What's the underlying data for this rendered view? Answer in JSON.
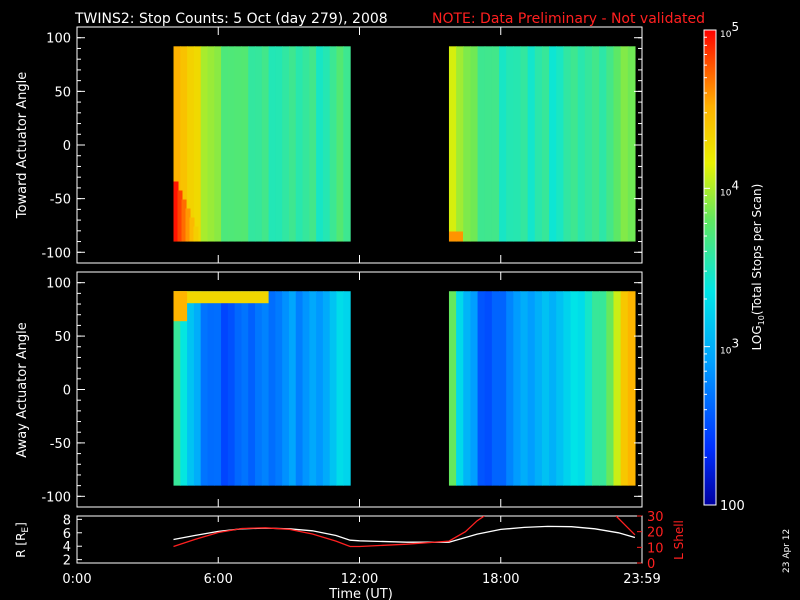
{
  "title": {
    "main": "TWINS2: Stop Counts:  5 Oct (day 279), 2008",
    "note": "NOTE: Data Preliminary - Not validated"
  },
  "date_stamp": "23 Apr 12",
  "colors": {
    "background": "#000000",
    "axes": "#ffffff",
    "note": "#ff2020",
    "r_line": "#ffffff",
    "lshell_line": "#ff2020"
  },
  "chart_data": [
    {
      "type": "heatmap",
      "name": "toward",
      "ylabel": "Toward Actuator Angle",
      "ylim": [
        -110,
        110
      ],
      "yticks": [
        100,
        50,
        0,
        -50,
        -100
      ],
      "xlim": [
        0,
        24
      ],
      "blocks": [
        {
          "t_start": 4.1,
          "t_end": 11.6,
          "angle_min": -90,
          "angle_max": 92,
          "level_profile": [
            4.6,
            4.45,
            4.3,
            4.2,
            4.05,
            3.95,
            3.85,
            3.8,
            3.75,
            3.7,
            3.65,
            3.65,
            3.6,
            3.6,
            3.6,
            3.55,
            3.55,
            3.55,
            3.6,
            3.6,
            3.6,
            3.55,
            3.55,
            3.6,
            3.65,
            3.7
          ],
          "low_angle_edge": "red-orange near -90 at start"
        },
        {
          "t_start": 15.8,
          "t_end": 23.7,
          "angle_min": -90,
          "angle_max": 92,
          "level_profile": [
            4.2,
            4.0,
            3.85,
            3.75,
            3.7,
            3.65,
            3.6,
            3.55,
            3.55,
            3.5,
            3.5,
            3.5,
            3.55,
            3.55,
            3.5,
            3.5,
            3.55,
            3.55,
            3.6,
            3.6,
            3.6,
            3.65,
            3.7,
            3.75,
            3.8,
            3.9
          ]
        }
      ]
    },
    {
      "type": "heatmap",
      "name": "away",
      "ylabel": "Away Actuator Angle",
      "ylim": [
        -110,
        110
      ],
      "yticks": [
        100,
        50,
        0,
        -50,
        -100
      ],
      "xlim": [
        0,
        24
      ],
      "blocks": [
        {
          "t_start": 4.1,
          "t_end": 11.6,
          "angle_min": -90,
          "angle_max": 92,
          "level_profile": [
            3.7,
            3.4,
            3.1,
            2.9,
            2.75,
            2.65,
            2.6,
            2.55,
            2.55,
            2.6,
            2.6,
            2.65,
            2.7,
            2.7,
            2.75,
            2.75,
            2.8,
            2.85,
            2.8,
            2.85,
            2.9,
            2.95,
            3.0,
            3.1,
            3.2,
            3.3
          ],
          "high_angle_band": "orange-yellow near +90"
        },
        {
          "t_start": 15.8,
          "t_end": 23.7,
          "angle_min": -90,
          "angle_max": 92,
          "level_profile": [
            3.9,
            3.3,
            3.0,
            2.8,
            2.6,
            2.5,
            2.55,
            2.7,
            2.8,
            2.85,
            2.9,
            2.95,
            3.0,
            3.05,
            3.1,
            3.15,
            3.2,
            3.25,
            3.35,
            3.45,
            3.55,
            3.7,
            3.85,
            4.05,
            4.3,
            4.55
          ]
        }
      ]
    },
    {
      "type": "line",
      "name": "orbit",
      "xlabel": "Time (UT)",
      "xlim": [
        0,
        24
      ],
      "xticks": [
        {
          "v": 0,
          "label": "0:00"
        },
        {
          "v": 6,
          "label": "6:00"
        },
        {
          "v": 12,
          "label": "12:00"
        },
        {
          "v": 18,
          "label": "18:00"
        },
        {
          "v": 24,
          "label": "23:59"
        }
      ],
      "left_axis": {
        "label": "R [R",
        "label_sub": "E",
        "label_end": "]",
        "ylim": [
          1.5,
          8.5
        ],
        "yticks": [
          2,
          4,
          6,
          8
        ]
      },
      "right_axis": {
        "label": "L Shell",
        "ylim": [
          0,
          30
        ],
        "yticks": [
          0,
          10,
          20,
          30
        ]
      },
      "series": [
        {
          "axis": "left",
          "x": [
            4.1,
            5.0,
            6.0,
            7.0,
            8.0,
            9.0,
            10.0,
            11.0,
            11.6,
            12.0,
            14.0,
            15.8,
            17.0,
            18.0,
            19.0,
            20.0,
            21.0,
            22.0,
            23.0,
            23.7
          ],
          "y": [
            5.0,
            5.6,
            6.2,
            6.6,
            6.7,
            6.6,
            6.3,
            5.6,
            4.9,
            4.8,
            4.6,
            4.6,
            5.8,
            6.5,
            6.8,
            6.95,
            6.9,
            6.6,
            6.0,
            5.3
          ]
        },
        {
          "axis": "right",
          "x": [
            4.1,
            5.0,
            6.0,
            7.0,
            8.0,
            9.0,
            10.0,
            11.0,
            11.6,
            12.0,
            14.0,
            15.8,
            16.5,
            17.0,
            17.3
          ],
          "y": [
            10.5,
            15,
            19.5,
            22,
            22.5,
            21.5,
            18.5,
            14,
            10.5,
            10.5,
            12,
            14,
            20,
            27,
            30
          ]
        },
        {
          "axis": "right",
          "x": [
            22.9,
            23.3,
            23.7
          ],
          "y": [
            30,
            24,
            18
          ]
        }
      ]
    }
  ],
  "colorbar": {
    "label_prefix": "LOG",
    "label_sub": "10",
    "label_suffix": "(Total Stops per Scan)",
    "range": [
      2,
      5
    ],
    "ticks": [
      {
        "v": 5,
        "base": "10",
        "exp": "5"
      },
      {
        "v": 4,
        "base": "10",
        "exp": "4"
      },
      {
        "v": 3,
        "base": "10",
        "exp": "3"
      },
      {
        "v": 2,
        "base": "100",
        "exp": ""
      }
    ]
  }
}
